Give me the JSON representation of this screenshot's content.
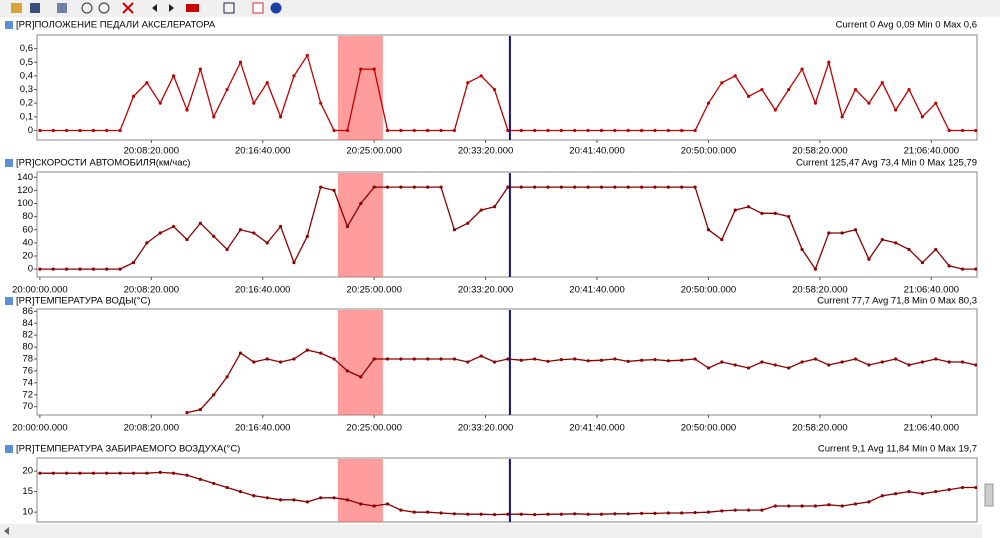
{
  "selection": [
    "20:22:17",
    "20:25:39"
  ],
  "cursor": "20:35:09",
  "chart_data": [
    {
      "type": "line",
      "title": "[PR]ПОЛОЖЕНИЕ ПЕДАЛИ АКСЕЛЕРАТОРА",
      "stats": "Current 0 Avg 0,09 Min 0 Max 0,6",
      "color": "#c00000",
      "xlim": [
        "19:59:47",
        "21:10:05"
      ],
      "xticks": [
        "20:08:20.000",
        "20:16:40.000",
        "20:25:00.000",
        "20:33:20.000",
        "20:41:40.000",
        "20:50:00.000",
        "20:58:20.000",
        "21:06:40.000"
      ],
      "ylim": [
        -0.07,
        0.7
      ],
      "yticks": [
        0,
        {
          "value": 0.1,
          "label": "0,1"
        },
        {
          "value": 0.2,
          "label": "0,2"
        },
        {
          "value": 0.3,
          "label": "0,3"
        },
        {
          "value": 0.4,
          "label": "0,4"
        },
        {
          "value": 0.5,
          "label": "0,5"
        },
        {
          "value": 0.6,
          "label": "0,6"
        }
      ],
      "x": [
        "20:00:00",
        "20:01:00",
        "20:02:00",
        "20:03:00",
        "20:04:00",
        "20:05:00",
        "20:06:00",
        "20:07:00",
        "20:08:00",
        "20:09:00",
        "20:10:00",
        "20:11:00",
        "20:12:00",
        "20:13:00",
        "20:14:00",
        "20:15:00",
        "20:16:00",
        "20:17:00",
        "20:18:00",
        "20:19:00",
        "20:20:00",
        "20:21:00",
        "20:22:00",
        "20:23:00",
        "20:24:00",
        "20:25:00",
        "20:26:00",
        "20:27:00",
        "20:28:00",
        "20:29:00",
        "20:30:00",
        "20:31:00",
        "20:32:00",
        "20:33:00",
        "20:34:00",
        "20:35:00",
        "20:36:00",
        "20:37:00",
        "20:38:00",
        "20:39:00",
        "20:40:00",
        "20:41:00",
        "20:42:00",
        "20:43:00",
        "20:44:00",
        "20:45:00",
        "20:46:00",
        "20:47:00",
        "20:48:00",
        "20:49:00",
        "20:50:00",
        "20:51:00",
        "20:52:00",
        "20:53:00",
        "20:54:00",
        "20:55:00",
        "20:56:00",
        "20:57:00",
        "20:58:00",
        "20:59:00",
        "21:00:00",
        "21:01:00",
        "21:02:00",
        "21:03:00",
        "21:04:00",
        "21:05:00",
        "21:06:00",
        "21:07:00",
        "21:08:00",
        "21:09:00",
        "21:10:00"
      ],
      "values": [
        0,
        0,
        0,
        0,
        0,
        0,
        0,
        0.25,
        0.35,
        0.2,
        0.4,
        0.15,
        0.45,
        0.1,
        0.3,
        0.5,
        0.2,
        0.35,
        0.1,
        0.4,
        0.55,
        0.2,
        0,
        0,
        0.45,
        0.45,
        0,
        0,
        0,
        0,
        0,
        0,
        0.35,
        0.4,
        0.3,
        0,
        0,
        0,
        0,
        0,
        0,
        0,
        0,
        0,
        0,
        0,
        0,
        0,
        0,
        0,
        0.2,
        0.35,
        0.4,
        0.25,
        0.3,
        0.15,
        0.3,
        0.45,
        0.2,
        0.5,
        0.1,
        0.3,
        0.2,
        0.35,
        0.15,
        0.3,
        0.1,
        0.2,
        0,
        0,
        0
      ]
    },
    {
      "type": "line",
      "title": "[PR]СКОРОСТИ АВТОМОБИЛЯ(км/час)",
      "stats": "Current 125,47 Avg 73,4 Min 0 Max 125,79",
      "color": "#8b0000",
      "xlim": [
        "19:59:47",
        "21:10:05"
      ],
      "xticks": [
        "20:00:00.000",
        "20:08:20.000",
        "20:16:40.000",
        "20:25:00.000",
        "20:33:20.000",
        "20:41:40.000",
        "20:50:00.000",
        "20:58:20.000",
        "21:06:40.000"
      ],
      "ylim": [
        -12,
        148
      ],
      "yticks": [
        0,
        20,
        40,
        60,
        80,
        100,
        120,
        140
      ],
      "x": [
        "20:00:00",
        "20:01:00",
        "20:02:00",
        "20:03:00",
        "20:04:00",
        "20:05:00",
        "20:06:00",
        "20:07:00",
        "20:08:00",
        "20:09:00",
        "20:10:00",
        "20:11:00",
        "20:12:00",
        "20:13:00",
        "20:14:00",
        "20:15:00",
        "20:16:00",
        "20:17:00",
        "20:18:00",
        "20:19:00",
        "20:20:00",
        "20:21:00",
        "20:22:00",
        "20:23:00",
        "20:24:00",
        "20:25:00",
        "20:26:00",
        "20:27:00",
        "20:28:00",
        "20:29:00",
        "20:30:00",
        "20:31:00",
        "20:32:00",
        "20:33:00",
        "20:34:00",
        "20:35:00",
        "20:36:00",
        "20:37:00",
        "20:38:00",
        "20:39:00",
        "20:40:00",
        "20:41:00",
        "20:42:00",
        "20:43:00",
        "20:44:00",
        "20:45:00",
        "20:46:00",
        "20:47:00",
        "20:48:00",
        "20:49:00",
        "20:50:00",
        "20:51:00",
        "20:52:00",
        "20:53:00",
        "20:54:00",
        "20:55:00",
        "20:56:00",
        "20:57:00",
        "20:58:00",
        "20:59:00",
        "21:00:00",
        "21:01:00",
        "21:02:00",
        "21:03:00",
        "21:04:00",
        "21:05:00",
        "21:06:00",
        "21:07:00",
        "21:08:00",
        "21:09:00",
        "21:10:00"
      ],
      "values": [
        0,
        0,
        0,
        0,
        0,
        0,
        0,
        10,
        40,
        55,
        65,
        45,
        70,
        50,
        30,
        60,
        55,
        40,
        65,
        10,
        50,
        125,
        120,
        65,
        100,
        125,
        125,
        125,
        125,
        125,
        125,
        60,
        70,
        90,
        95,
        125,
        125,
        125,
        125,
        125,
        125,
        125,
        125,
        125,
        125,
        125,
        125,
        125,
        125,
        125,
        60,
        45,
        90,
        95,
        85,
        85,
        80,
        30,
        0,
        55,
        55,
        60,
        15,
        45,
        40,
        30,
        10,
        30,
        5,
        0,
        0
      ]
    },
    {
      "type": "line",
      "title": "[PR]ТЕМПЕРАТУРА ВОДЫ(°C)",
      "stats": "Current 77,7 Avg 71,8 Min 0 Max 80,3",
      "color": "#8b0000",
      "xlim": [
        "19:59:47",
        "21:10:05"
      ],
      "xticks": [
        "20:00:00.000",
        "20:08:20.000",
        "20:16:40.000",
        "20:25:00.000",
        "20:33:20.000",
        "20:41:40.000",
        "20:50:00.000",
        "20:58:20.000",
        "21:06:40.000"
      ],
      "ylim": [
        68.6,
        86.4
      ],
      "yticks": [
        70,
        72,
        74,
        76,
        78,
        80,
        82,
        84,
        86
      ],
      "x": [
        "20:00:00",
        "20:01:00",
        "20:02:00",
        "20:03:00",
        "20:04:00",
        "20:05:00",
        "20:06:00",
        "20:07:00",
        "20:08:00",
        "20:09:00",
        "20:10:00",
        "20:11:00",
        "20:12:00",
        "20:13:00",
        "20:14:00",
        "20:15:00",
        "20:16:00",
        "20:17:00",
        "20:18:00",
        "20:19:00",
        "20:20:00",
        "20:21:00",
        "20:22:00",
        "20:23:00",
        "20:24:00",
        "20:25:00",
        "20:26:00",
        "20:27:00",
        "20:28:00",
        "20:29:00",
        "20:30:00",
        "20:31:00",
        "20:32:00",
        "20:33:00",
        "20:34:00",
        "20:35:00",
        "20:36:00",
        "20:37:00",
        "20:38:00",
        "20:39:00",
        "20:40:00",
        "20:41:00",
        "20:42:00",
        "20:43:00",
        "20:44:00",
        "20:45:00",
        "20:46:00",
        "20:47:00",
        "20:48:00",
        "20:49:00",
        "20:50:00",
        "20:51:00",
        "20:52:00",
        "20:53:00",
        "20:54:00",
        "20:55:00",
        "20:56:00",
        "20:57:00",
        "20:58:00",
        "20:59:00",
        "21:00:00",
        "21:01:00",
        "21:02:00",
        "21:03:00",
        "21:04:00",
        "21:05:00",
        "21:06:00",
        "21:07:00",
        "21:08:00",
        "21:09:00",
        "21:10:00"
      ],
      "values": [
        null,
        null,
        null,
        null,
        null,
        null,
        null,
        null,
        null,
        null,
        null,
        69,
        69.5,
        72,
        75,
        79,
        77.5,
        78,
        77.5,
        78,
        79.5,
        79,
        78,
        76,
        75,
        78,
        78,
        78,
        78,
        78,
        78,
        78,
        77.5,
        78.5,
        77.5,
        78,
        77.8,
        78,
        77.6,
        77.9,
        78,
        77.7,
        77.8,
        78,
        77.6,
        77.8,
        77.9,
        77.7,
        77.8,
        78,
        76.5,
        77.5,
        77,
        76.5,
        77.5,
        77,
        76.5,
        77.5,
        78,
        77,
        77.5,
        78,
        77,
        77.5,
        78,
        77,
        77.5,
        78,
        77.5,
        77.5,
        77
      ]
    },
    {
      "type": "line",
      "title": "[PR]ТЕМПЕРАТУРА ЗАБИРАЕМОГО ВОЗДУХА(°C)",
      "stats": "Current 9,1 Avg 11,84 Min 0 Max 19,7",
      "color": "#8b0000",
      "xlim": [
        "19:59:47",
        "21:10:05"
      ],
      "ylim": [
        7.6,
        23.2
      ],
      "yticks": [
        10,
        15,
        20
      ],
      "x": [
        "20:00:00",
        "20:01:00",
        "20:02:00",
        "20:03:00",
        "20:04:00",
        "20:05:00",
        "20:06:00",
        "20:07:00",
        "20:08:00",
        "20:09:00",
        "20:10:00",
        "20:11:00",
        "20:12:00",
        "20:13:00",
        "20:14:00",
        "20:15:00",
        "20:16:00",
        "20:17:00",
        "20:18:00",
        "20:19:00",
        "20:20:00",
        "20:21:00",
        "20:22:00",
        "20:23:00",
        "20:24:00",
        "20:25:00",
        "20:26:00",
        "20:27:00",
        "20:28:00",
        "20:29:00",
        "20:30:00",
        "20:31:00",
        "20:32:00",
        "20:33:00",
        "20:34:00",
        "20:35:00",
        "20:36:00",
        "20:37:00",
        "20:38:00",
        "20:39:00",
        "20:40:00",
        "20:41:00",
        "20:42:00",
        "20:43:00",
        "20:44:00",
        "20:45:00",
        "20:46:00",
        "20:47:00",
        "20:48:00",
        "20:49:00",
        "20:50:00",
        "20:51:00",
        "20:52:00",
        "20:53:00",
        "20:54:00",
        "20:55:00",
        "20:56:00",
        "20:57:00",
        "20:58:00",
        "20:59:00",
        "21:00:00",
        "21:01:00",
        "21:02:00",
        "21:03:00",
        "21:04:00",
        "21:05:00",
        "21:06:00",
        "21:07:00",
        "21:08:00",
        "21:09:00",
        "21:10:00"
      ],
      "values": [
        19.5,
        19.5,
        19.5,
        19.5,
        19.5,
        19.5,
        19.5,
        19.5,
        19.5,
        19.7,
        19.5,
        19,
        18,
        17,
        16,
        15,
        14,
        13.5,
        13,
        13,
        12.5,
        13.5,
        13.5,
        13,
        12,
        11.5,
        12,
        10.5,
        10,
        10,
        9.8,
        9.6,
        9.5,
        9.5,
        9.4,
        9.5,
        9.5,
        9.4,
        9.5,
        9.5,
        9.6,
        9.5,
        9.5,
        9.6,
        9.6,
        9.7,
        9.7,
        9.8,
        9.8,
        9.9,
        10,
        10.3,
        10.5,
        10.5,
        10.5,
        11.5,
        11.5,
        11.5,
        11.5,
        11.8,
        11.5,
        12,
        12.5,
        14,
        14.5,
        15,
        14.5,
        15,
        15.5,
        16,
        16
      ]
    }
  ]
}
